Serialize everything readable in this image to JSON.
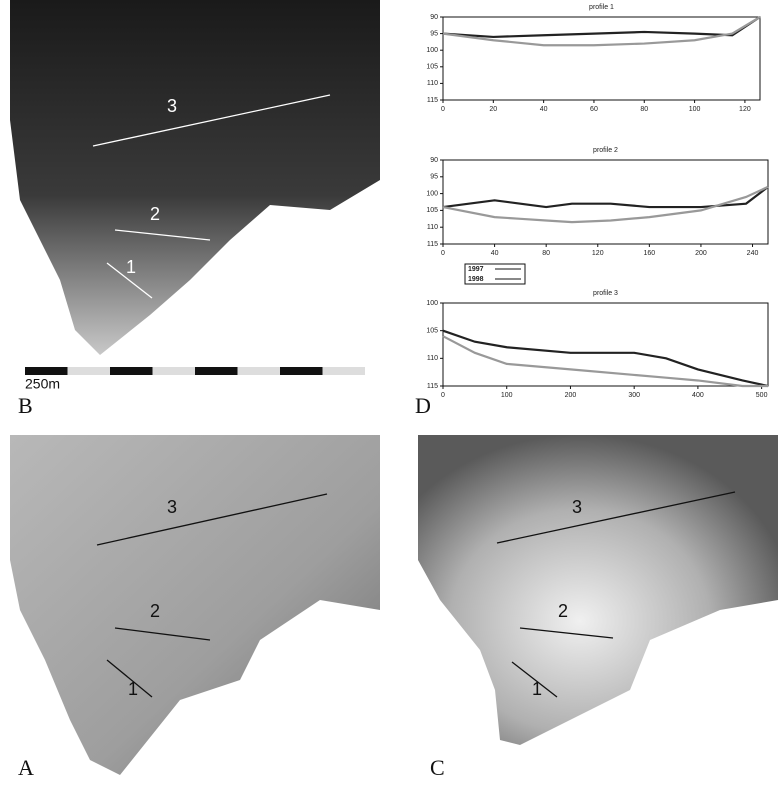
{
  "maps": [
    {
      "label": "B",
      "profile_labels": [
        "3",
        "2",
        "1"
      ],
      "scale_label": "250m"
    },
    {
      "label": "A",
      "profile_labels": [
        "3",
        "2",
        "1"
      ]
    },
    {
      "label": "C",
      "profile_labels": [
        "3",
        "2",
        "1"
      ]
    }
  ],
  "chart_panel_label": "D",
  "chart_data": [
    {
      "type": "line",
      "title": "profile 1",
      "xlim": [
        0,
        126
      ],
      "xticks": [
        0,
        20,
        40,
        60,
        80,
        100,
        120
      ],
      "ylim": [
        115,
        90
      ],
      "yticks": [
        90,
        95,
        100,
        105,
        110,
        115
      ],
      "x": [
        0,
        20,
        40,
        60,
        80,
        100,
        115,
        126
      ],
      "series": [
        {
          "color": "#222222",
          "values": [
            95,
            96,
            95.5,
            95,
            94.5,
            95,
            95.5,
            90
          ]
        },
        {
          "color": "#999999",
          "values": [
            95,
            97,
            98.5,
            98.5,
            98,
            97,
            95,
            90
          ]
        }
      ]
    },
    {
      "type": "line",
      "title": "profile 2",
      "xlim": [
        0,
        252
      ],
      "xticks": [
        0,
        40,
        80,
        120,
        160,
        200,
        240
      ],
      "ylim": [
        115,
        90
      ],
      "yticks": [
        90,
        95,
        100,
        105,
        110,
        115
      ],
      "legend": "bottom-left",
      "x": [
        0,
        40,
        60,
        80,
        100,
        130,
        160,
        200,
        235,
        252
      ],
      "series": [
        {
          "name": "1997",
          "color": "#222222",
          "values": [
            104,
            102,
            103,
            104,
            103,
            103,
            104,
            104,
            103,
            98
          ]
        },
        {
          "name": "1998",
          "color": "#999999",
          "values": [
            104,
            107,
            107.5,
            108,
            108.5,
            108,
            107,
            105,
            101,
            98
          ]
        }
      ]
    },
    {
      "type": "line",
      "title": "profile 3",
      "xlim": [
        0,
        510
      ],
      "xticks": [
        0,
        100,
        200,
        300,
        400,
        500
      ],
      "ylim": [
        115,
        100
      ],
      "yticks": [
        100,
        105,
        110,
        115
      ],
      "x": [
        0,
        50,
        100,
        200,
        300,
        350,
        400,
        470,
        510
      ],
      "series": [
        {
          "color": "#222222",
          "values": [
            105,
            107,
            108,
            109,
            109,
            110,
            112,
            114,
            115
          ]
        },
        {
          "color": "#999999",
          "values": [
            106,
            109,
            111,
            112,
            113,
            113.5,
            114,
            115,
            115
          ]
        }
      ]
    }
  ]
}
